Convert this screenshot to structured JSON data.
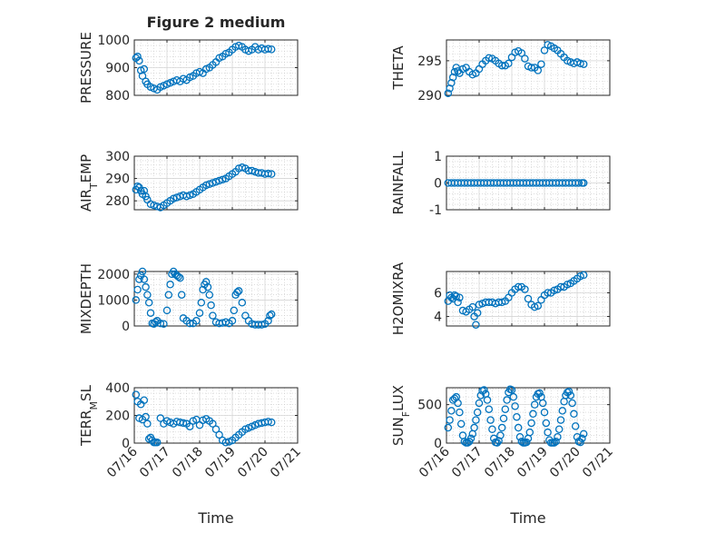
{
  "figure_title": "Figure 2 medium",
  "chart_data": [
    {
      "id": "pressure",
      "type": "scatter",
      "title": "Figure 2 medium",
      "ylabel_parts": [
        {
          "t": "PRESSURE"
        }
      ],
      "ylim": [
        800,
        1000
      ],
      "yticks": [
        800,
        900,
        1000
      ],
      "ytick_labels": [
        "800",
        "900",
        "1000"
      ],
      "xlim": [
        0,
        5
      ],
      "xticks": [
        0,
        1,
        2,
        3,
        4,
        5
      ],
      "xtick_labels": [],
      "grid": true,
      "x": [
        0.05,
        0.1,
        0.15,
        0.2,
        0.25,
        0.3,
        0.35,
        0.4,
        0.5,
        0.6,
        0.7,
        0.8,
        0.9,
        1.0,
        1.1,
        1.2,
        1.3,
        1.4,
        1.5,
        1.6,
        1.7,
        1.8,
        1.9,
        2.0,
        2.1,
        2.2,
        2.3,
        2.4,
        2.5,
        2.6,
        2.7,
        2.8,
        2.9,
        3.0,
        3.1,
        3.2,
        3.3,
        3.4,
        3.5,
        3.6,
        3.7,
        3.8,
        3.9,
        4.0,
        4.1,
        4.2
      ],
      "y": [
        935,
        940,
        925,
        890,
        870,
        895,
        850,
        840,
        830,
        825,
        820,
        830,
        835,
        840,
        845,
        850,
        855,
        850,
        860,
        855,
        865,
        870,
        880,
        885,
        880,
        895,
        900,
        910,
        920,
        935,
        940,
        950,
        955,
        965,
        975,
        980,
        975,
        965,
        960,
        965,
        975,
        965,
        970,
        965,
        968,
        966
      ]
    },
    {
      "id": "theta",
      "type": "scatter",
      "title": "",
      "ylabel_parts": [
        {
          "t": "THETA"
        }
      ],
      "ylim": [
        290,
        298
      ],
      "yticks": [
        290,
        295
      ],
      "ytick_labels": [
        "290",
        "295"
      ],
      "xlim": [
        0,
        5
      ],
      "xticks": [
        0,
        1,
        2,
        3,
        4,
        5
      ],
      "xtick_labels": [],
      "grid": true,
      "x": [
        0.05,
        0.1,
        0.15,
        0.2,
        0.25,
        0.3,
        0.35,
        0.4,
        0.5,
        0.6,
        0.7,
        0.8,
        0.9,
        1.0,
        1.1,
        1.2,
        1.3,
        1.4,
        1.5,
        1.6,
        1.7,
        1.8,
        1.9,
        2.0,
        2.1,
        2.2,
        2.3,
        2.4,
        2.5,
        2.6,
        2.7,
        2.8,
        2.9,
        3.0,
        3.1,
        3.2,
        3.3,
        3.4,
        3.5,
        3.6,
        3.7,
        3.8,
        3.9,
        4.0,
        4.1,
        4.2
      ],
      "y": [
        290.3,
        291.0,
        291.8,
        292.6,
        293.4,
        294.0,
        293.5,
        293.2,
        293.8,
        294.0,
        293.4,
        293.0,
        293.2,
        293.8,
        294.5,
        295.0,
        295.4,
        295.3,
        295.0,
        294.6,
        294.3,
        294.3,
        294.6,
        295.5,
        296.2,
        296.4,
        296.1,
        295.3,
        294.2,
        294.0,
        294.0,
        293.6,
        294.5,
        296.5,
        297.3,
        297.1,
        296.8,
        296.5,
        296.0,
        295.5,
        295.0,
        294.8,
        294.6,
        294.8,
        294.6,
        294.5
      ]
    },
    {
      "id": "airtemp",
      "type": "scatter",
      "title": "",
      "ylabel_parts": [
        {
          "t": "AIR"
        },
        {
          "t": "T",
          "sub": true
        },
        {
          "t": "EMP"
        }
      ],
      "ylim": [
        276,
        300
      ],
      "yticks": [
        280,
        290,
        300
      ],
      "ytick_labels": [
        "280",
        "290",
        "300"
      ],
      "xlim": [
        0,
        5
      ],
      "xticks": [
        0,
        1,
        2,
        3,
        4,
        5
      ],
      "xtick_labels": [],
      "grid": true,
      "x": [
        0.05,
        0.1,
        0.15,
        0.2,
        0.25,
        0.3,
        0.35,
        0.4,
        0.5,
        0.6,
        0.7,
        0.8,
        0.9,
        1.0,
        1.1,
        1.2,
        1.3,
        1.4,
        1.5,
        1.6,
        1.7,
        1.8,
        1.9,
        2.0,
        2.1,
        2.2,
        2.3,
        2.4,
        2.5,
        2.6,
        2.7,
        2.8,
        2.9,
        3.0,
        3.1,
        3.2,
        3.3,
        3.4,
        3.5,
        3.6,
        3.7,
        3.8,
        3.9,
        4.0,
        4.1,
        4.2
      ],
      "y": [
        285.0,
        286.5,
        286.0,
        284.5,
        283.0,
        284.5,
        282.0,
        280.5,
        278.5,
        278.0,
        277.5,
        277.0,
        278.0,
        279.0,
        280.0,
        281.0,
        281.5,
        282.0,
        282.5,
        282.0,
        282.5,
        283.0,
        284.0,
        285.0,
        286.0,
        287.0,
        287.5,
        288.0,
        288.5,
        289.0,
        289.5,
        290.0,
        291.0,
        292.0,
        293.0,
        294.5,
        295.0,
        294.5,
        293.5,
        293.5,
        293.0,
        292.5,
        292.5,
        292.0,
        292.2,
        292.0
      ]
    },
    {
      "id": "rainfall",
      "type": "scatter",
      "title": "",
      "ylabel_parts": [
        {
          "t": "RAINFALL"
        }
      ],
      "ylim": [
        -1,
        1
      ],
      "yticks": [
        -1,
        0,
        1
      ],
      "ytick_labels": [
        "-1",
        "0",
        "1"
      ],
      "xlim": [
        0,
        5
      ],
      "xticks": [
        0,
        1,
        2,
        3,
        4,
        5
      ],
      "xtick_labels": [],
      "grid": true,
      "x": [
        0.05,
        0.15,
        0.25,
        0.35,
        0.45,
        0.55,
        0.65,
        0.75,
        0.85,
        0.95,
        1.05,
        1.15,
        1.25,
        1.35,
        1.45,
        1.55,
        1.65,
        1.75,
        1.85,
        1.95,
        2.05,
        2.15,
        2.25,
        2.35,
        2.45,
        2.55,
        2.65,
        2.75,
        2.85,
        2.95,
        3.05,
        3.15,
        3.25,
        3.35,
        3.45,
        3.55,
        3.65,
        3.75,
        3.85,
        3.95,
        4.05,
        4.15,
        4.2
      ],
      "y": [
        0,
        0,
        0,
        0,
        0,
        0,
        0,
        0,
        0,
        0,
        0,
        0,
        0,
        0,
        0,
        0,
        0,
        0,
        0,
        0,
        0,
        0,
        0,
        0,
        0,
        0,
        0,
        0,
        0,
        0,
        0,
        0,
        0,
        0,
        0,
        0,
        0,
        0,
        0,
        0,
        0,
        0,
        0
      ]
    },
    {
      "id": "mixdepth",
      "type": "scatter",
      "title": "",
      "ylabel_parts": [
        {
          "t": "MIXDEPTH"
        }
      ],
      "ylim": [
        0,
        2100
      ],
      "yticks": [
        0,
        1000,
        2000
      ],
      "ytick_labels": [
        "0",
        "1000",
        "2000"
      ],
      "xlim": [
        0,
        5
      ],
      "xticks": [
        0,
        1,
        2,
        3,
        4,
        5
      ],
      "xtick_labels": [],
      "grid": true,
      "x": [
        0.05,
        0.1,
        0.15,
        0.2,
        0.25,
        0.3,
        0.35,
        0.4,
        0.45,
        0.5,
        0.55,
        0.6,
        0.65,
        0.7,
        0.8,
        0.9,
        1.0,
        1.05,
        1.1,
        1.15,
        1.2,
        1.25,
        1.3,
        1.35,
        1.4,
        1.45,
        1.5,
        1.6,
        1.7,
        1.8,
        1.9,
        2.0,
        2.05,
        2.1,
        2.15,
        2.2,
        2.25,
        2.3,
        2.35,
        2.4,
        2.5,
        2.6,
        2.7,
        2.8,
        2.9,
        3.0,
        3.05,
        3.1,
        3.15,
        3.2,
        3.3,
        3.4,
        3.5,
        3.6,
        3.7,
        3.8,
        3.9,
        4.0,
        4.1,
        4.15,
        4.2
      ],
      "y": [
        1000,
        1400,
        1800,
        1950,
        2100,
        1800,
        1500,
        1200,
        900,
        500,
        100,
        80,
        150,
        200,
        100,
        80,
        600,
        1200,
        1600,
        2000,
        2100,
        2000,
        1950,
        1900,
        1850,
        1200,
        300,
        200,
        100,
        100,
        200,
        500,
        900,
        1400,
        1600,
        1700,
        1500,
        1200,
        800,
        400,
        150,
        100,
        120,
        150,
        100,
        200,
        600,
        1200,
        1300,
        1350,
        900,
        400,
        200,
        80,
        50,
        50,
        50,
        80,
        200,
        400,
        450
      ]
    },
    {
      "id": "h2omixra",
      "type": "scatter",
      "title": "",
      "ylabel_parts": [
        {
          "t": "H2OMIXRA"
        }
      ],
      "ylim": [
        3.2,
        7.8
      ],
      "yticks": [
        4,
        6
      ],
      "ytick_labels": [
        "4",
        "6"
      ],
      "xlim": [
        0,
        5
      ],
      "xticks": [
        0,
        1,
        2,
        3,
        4,
        5
      ],
      "xtick_labels": [],
      "grid": true,
      "x": [
        0.05,
        0.1,
        0.15,
        0.2,
        0.25,
        0.3,
        0.35,
        0.4,
        0.5,
        0.6,
        0.7,
        0.8,
        0.85,
        0.9,
        0.95,
        1.0,
        1.1,
        1.2,
        1.3,
        1.4,
        1.5,
        1.6,
        1.7,
        1.8,
        1.9,
        2.0,
        2.1,
        2.2,
        2.3,
        2.4,
        2.5,
        2.6,
        2.7,
        2.8,
        2.9,
        3.0,
        3.1,
        3.2,
        3.3,
        3.4,
        3.5,
        3.6,
        3.7,
        3.8,
        3.9,
        4.0,
        4.1,
        4.2
      ],
      "y": [
        5.3,
        5.8,
        5.6,
        5.5,
        5.8,
        5.7,
        5.2,
        5.6,
        4.5,
        4.4,
        4.6,
        4.8,
        4.0,
        3.3,
        4.3,
        5.0,
        5.1,
        5.2,
        5.2,
        5.2,
        5.1,
        5.2,
        5.2,
        5.3,
        5.6,
        6.0,
        6.3,
        6.5,
        6.5,
        6.3,
        5.5,
        5.0,
        4.8,
        4.9,
        5.4,
        5.8,
        6.0,
        6.0,
        6.2,
        6.3,
        6.5,
        6.5,
        6.7,
        6.8,
        7.0,
        7.2,
        7.4,
        7.5
      ]
    },
    {
      "id": "terrmsl",
      "type": "scatter",
      "title": "",
      "ylabel_parts": [
        {
          "t": "TERR"
        },
        {
          "t": "M",
          "sub": true
        },
        {
          "t": "SL"
        }
      ],
      "ylim": [
        0,
        400
      ],
      "yticks": [
        0,
        200,
        400
      ],
      "ytick_labels": [
        "0",
        "200",
        "400"
      ],
      "xlim": [
        0,
        5
      ],
      "xticks": [
        0,
        1,
        2,
        3,
        4,
        5
      ],
      "xtick_labels": [
        "07/16",
        "07/17",
        "07/18",
        "07/19",
        "07/20",
        "07/21"
      ],
      "xlabel": "Time",
      "grid": true,
      "x": [
        0.05,
        0.1,
        0.15,
        0.2,
        0.25,
        0.3,
        0.35,
        0.4,
        0.45,
        0.5,
        0.55,
        0.6,
        0.65,
        0.7,
        0.8,
        0.9,
        1.0,
        1.1,
        1.2,
        1.3,
        1.4,
        1.5,
        1.6,
        1.7,
        1.8,
        1.9,
        2.0,
        2.1,
        2.2,
        2.3,
        2.4,
        2.5,
        2.6,
        2.7,
        2.8,
        2.9,
        3.0,
        3.1,
        3.2,
        3.3,
        3.4,
        3.5,
        3.6,
        3.7,
        3.8,
        3.9,
        4.0,
        4.1,
        4.2
      ],
      "y": [
        350,
        300,
        180,
        280,
        170,
        310,
        190,
        140,
        30,
        40,
        20,
        5,
        5,
        5,
        180,
        140,
        160,
        150,
        140,
        155,
        150,
        145,
        140,
        120,
        160,
        170,
        130,
        165,
        175,
        160,
        140,
        100,
        60,
        20,
        5,
        10,
        20,
        40,
        60,
        80,
        100,
        110,
        120,
        130,
        140,
        145,
        150,
        155,
        150
      ]
    },
    {
      "id": "sunflux",
      "type": "scatter",
      "title": "",
      "ylabel_parts": [
        {
          "t": "SUN"
        },
        {
          "t": "F",
          "sub": true
        },
        {
          "t": "LUX"
        }
      ],
      "ylim": [
        0,
        720
      ],
      "yticks": [
        0,
        500
      ],
      "ytick_labels": [
        "0",
        "500"
      ],
      "xlim": [
        0,
        5
      ],
      "xticks": [
        0,
        1,
        2,
        3,
        4,
        5
      ],
      "xtick_labels": [
        "07/16",
        "07/17",
        "07/18",
        "07/19",
        "07/20",
        "07/21"
      ],
      "xlabel": "Time",
      "grid": true,
      "x": [
        0.05,
        0.1,
        0.15,
        0.2,
        0.25,
        0.3,
        0.35,
        0.4,
        0.45,
        0.5,
        0.55,
        0.6,
        0.65,
        0.7,
        0.75,
        0.8,
        0.85,
        0.9,
        0.95,
        1.0,
        1.05,
        1.1,
        1.15,
        1.2,
        1.25,
        1.3,
        1.35,
        1.4,
        1.45,
        1.5,
        1.55,
        1.6,
        1.65,
        1.7,
        1.75,
        1.8,
        1.85,
        1.9,
        1.95,
        2.0,
        2.05,
        2.1,
        2.15,
        2.2,
        2.25,
        2.3,
        2.35,
        2.4,
        2.45,
        2.5,
        2.55,
        2.6,
        2.65,
        2.7,
        2.75,
        2.8,
        2.85,
        2.9,
        2.95,
        3.0,
        3.05,
        3.1,
        3.15,
        3.2,
        3.25,
        3.3,
        3.35,
        3.4,
        3.45,
        3.5,
        3.55,
        3.6,
        3.65,
        3.7,
        3.75,
        3.8,
        3.85,
        3.9,
        3.95,
        4.0,
        4.05,
        4.1,
        4.15,
        4.2
      ],
      "y": [
        200,
        300,
        420,
        560,
        580,
        600,
        520,
        400,
        250,
        100,
        20,
        5,
        5,
        20,
        60,
        120,
        200,
        300,
        400,
        520,
        620,
        680,
        690,
        640,
        560,
        440,
        300,
        180,
        60,
        10,
        5,
        30,
        100,
        200,
        320,
        440,
        560,
        660,
        700,
        690,
        600,
        480,
        340,
        200,
        80,
        20,
        5,
        5,
        10,
        60,
        140,
        260,
        380,
        500,
        600,
        640,
        650,
        600,
        520,
        400,
        260,
        140,
        40,
        5,
        5,
        5,
        20,
        80,
        180,
        300,
        420,
        540,
        620,
        660,
        670,
        620,
        520,
        380,
        220,
        80,
        20,
        10,
        60,
        120
      ]
    }
  ]
}
